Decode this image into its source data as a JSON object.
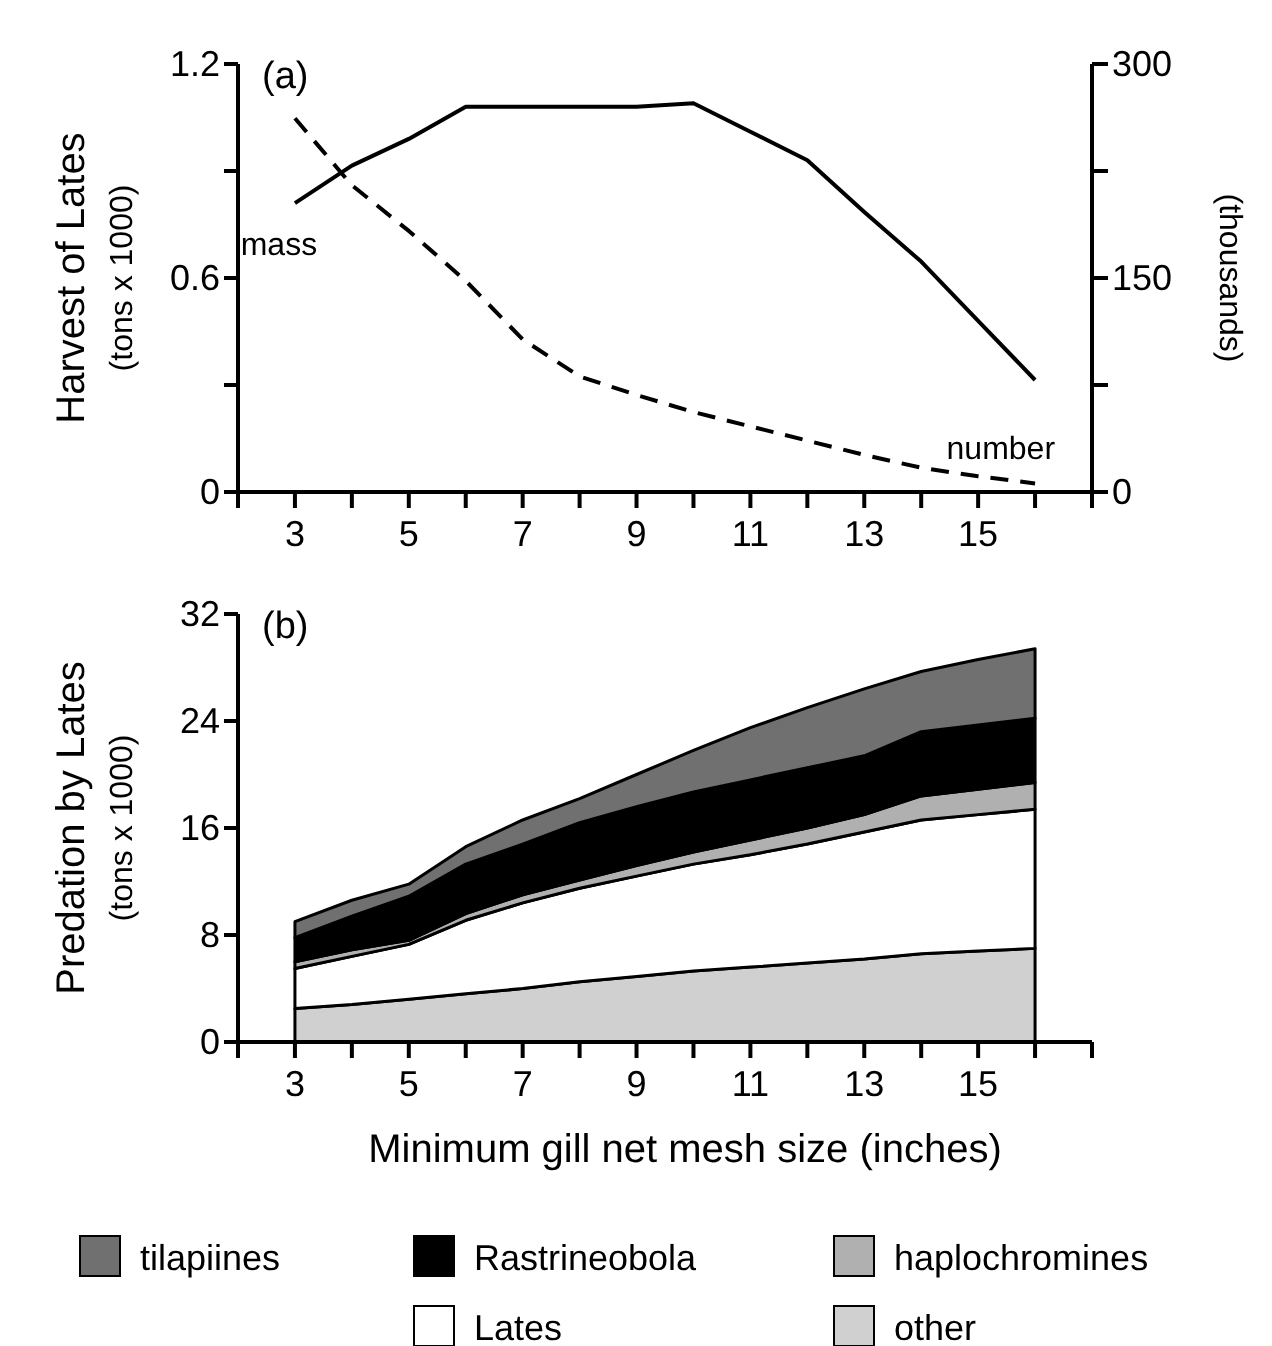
{
  "chart_data": [
    {
      "type": "line",
      "title": "(a)",
      "ylabel": "Harvest of Lates\n(tons x 1000)",
      "y2label": "(thousands)",
      "x": [
        3,
        4,
        5,
        6,
        7,
        8,
        9,
        10,
        11,
        12,
        13,
        14,
        15,
        16
      ],
      "xlim": [
        2,
        17
      ],
      "xticks": [
        {
          "value": 2,
          "label": null
        },
        3,
        {
          "value": 4,
          "label": null
        },
        5,
        {
          "value": 6,
          "label": null
        },
        7,
        {
          "value": 8,
          "label": null
        },
        9,
        {
          "value": 10,
          "label": null
        },
        11,
        {
          "value": 12,
          "label": null
        },
        13,
        {
          "value": 14,
          "label": null
        },
        15,
        {
          "value": 16,
          "label": null
        },
        {
          "value": 17,
          "label": null
        }
      ],
      "ylim": [
        0,
        1.2
      ],
      "yticks": [
        0,
        {
          "value": 0.3,
          "label": null
        },
        0.6,
        {
          "value": 0.9,
          "label": null
        },
        1.2
      ],
      "y2lim": [
        0,
        300
      ],
      "y2ticks": [
        0,
        {
          "value": 75,
          "label": null
        },
        150,
        {
          "value": 225,
          "label": null
        },
        300
      ],
      "legend": false,
      "grid": false,
      "series": [
        {
          "name": "mass",
          "color": "#000000",
          "line_style": "solid",
          "values": [
            0.81,
            0.915,
            0.99,
            1.08,
            1.08,
            1.08,
            1.08,
            1.09,
            1.01,
            0.93,
            0.785,
            0.646,
            0.48,
            0.314
          ]
        },
        {
          "name": "number",
          "color": "#000000",
          "line_style": "dashed",
          "axis": "y2",
          "values": [
            262,
            215,
            183,
            148,
            107,
            81,
            68,
            56,
            46,
            36,
            26,
            17,
            11,
            6
          ]
        }
      ]
    },
    {
      "type": "area",
      "stacked": true,
      "title": "(b)",
      "ylabel": "Predation by Lates\n(tons x 1000)",
      "xlabel": "Minimum gill net mesh size (inches)",
      "x": [
        3,
        4,
        5,
        6,
        7,
        8,
        9,
        10,
        11,
        12,
        13,
        14,
        15,
        16
      ],
      "xlim": [
        2,
        17
      ],
      "xticks": [
        {
          "value": 2,
          "label": null
        },
        3,
        {
          "value": 4,
          "label": null
        },
        5,
        {
          "value": 6,
          "label": null
        },
        7,
        {
          "value": 8,
          "label": null
        },
        9,
        {
          "value": 10,
          "label": null
        },
        11,
        {
          "value": 12,
          "label": null
        },
        13,
        {
          "value": 14,
          "label": null
        },
        15,
        {
          "value": 16,
          "label": null
        },
        {
          "value": 17,
          "label": null
        }
      ],
      "ylim": [
        0,
        32
      ],
      "yticks": [
        0,
        8,
        16,
        24,
        32
      ],
      "legend": "bottom",
      "grid": false,
      "series": [
        {
          "name": "other",
          "color": "#d0d0d0",
          "values": [
            2.5,
            2.8,
            3.2,
            3.6,
            4.0,
            4.5,
            4.9,
            5.3,
            5.6,
            5.9,
            6.2,
            6.6,
            6.8,
            7.0
          ]
        },
        {
          "name": "Lates",
          "color": "#ffffff",
          "values": [
            3.0,
            3.6,
            4.1,
            5.5,
            6.4,
            7.0,
            7.5,
            8.0,
            8.4,
            8.9,
            9.5,
            10.0,
            10.2,
            10.4
          ]
        },
        {
          "name": "haplochromines",
          "color": "#b0b0b0",
          "values": [
            0.5,
            0.5,
            0.3,
            0.5,
            0.6,
            0.6,
            0.8,
            0.9,
            1.1,
            1.2,
            1.3,
            1.8,
            1.9,
            2.0
          ]
        },
        {
          "name": "Rastrineobola",
          "color": "#000000",
          "values": [
            1.8,
            2.5,
            3.3,
            3.7,
            3.8,
            4.3,
            4.4,
            4.5,
            4.5,
            4.5,
            4.4,
            4.8,
            4.8,
            4.8
          ]
        },
        {
          "name": "tilapiines",
          "color": "#707070",
          "values": [
            1.2,
            1.2,
            0.9,
            1.3,
            1.8,
            1.8,
            2.4,
            3.1,
            3.9,
            4.5,
            5.0,
            4.5,
            4.9,
            5.2
          ]
        }
      ]
    }
  ]
}
